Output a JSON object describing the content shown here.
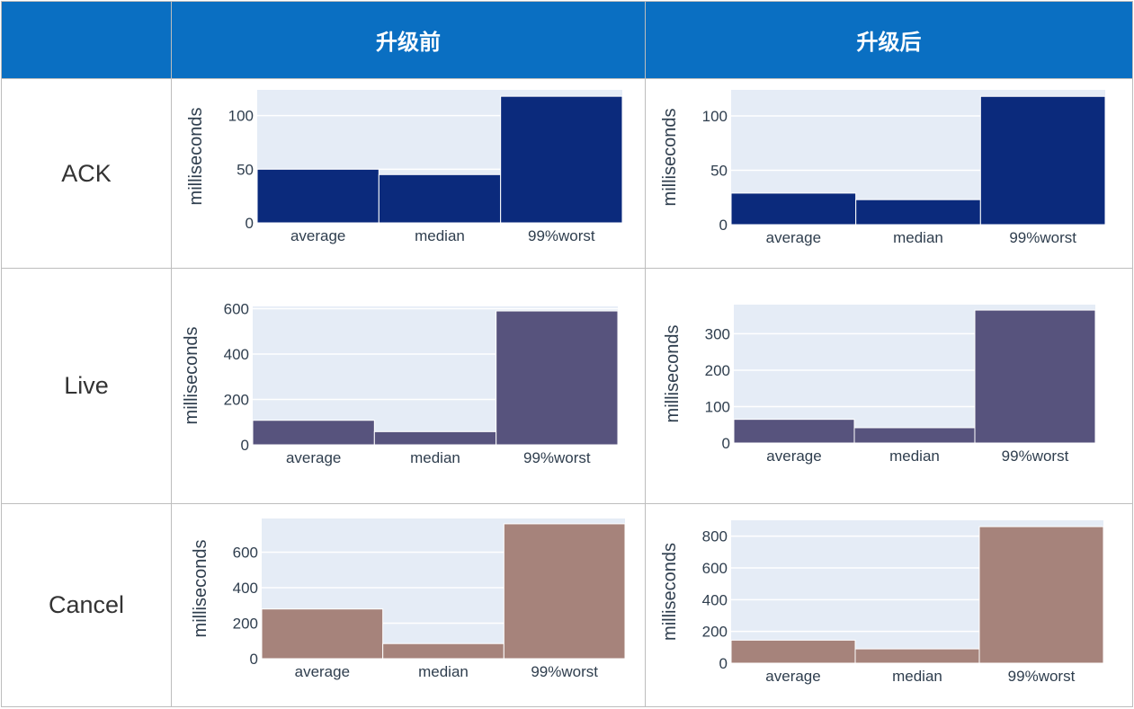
{
  "table": {
    "corner": "",
    "columns": [
      "升级前",
      "升级后"
    ],
    "rows": [
      "ACK",
      "Live",
      "Cancel"
    ]
  },
  "colors": {
    "header_bg": "#0a6fc2",
    "plot_bg": "#e5ecf6",
    "ACK": "#0b2a7c",
    "Live": "#57537d",
    "Cancel": "#a6837b"
  },
  "chart_data": [
    {
      "type": "bar",
      "row": "ACK",
      "column": "升级前",
      "categories": [
        "average",
        "median",
        "99%worst"
      ],
      "values": [
        50,
        45,
        118
      ],
      "ylabel": "milliseconds",
      "ylim": [
        0,
        124
      ],
      "yticks": [
        0,
        50,
        100
      ],
      "grid": true
    },
    {
      "type": "bar",
      "row": "ACK",
      "column": "升级后",
      "categories": [
        "average",
        "median",
        "99%worst"
      ],
      "values": [
        29,
        23,
        118
      ],
      "ylabel": "milliseconds",
      "ylim": [
        0,
        124
      ],
      "yticks": [
        0,
        50,
        100
      ],
      "grid": true
    },
    {
      "type": "bar",
      "row": "Live",
      "column": "升级前",
      "categories": [
        "average",
        "median",
        "99%worst"
      ],
      "values": [
        108,
        58,
        590
      ],
      "ylabel": "milliseconds",
      "ylim": [
        0,
        610
      ],
      "yticks": [
        0,
        200,
        400,
        600
      ],
      "grid": true
    },
    {
      "type": "bar",
      "row": "Live",
      "column": "升级后",
      "categories": [
        "average",
        "median",
        "99%worst"
      ],
      "values": [
        65,
        42,
        365
      ],
      "ylabel": "milliseconds",
      "ylim": [
        0,
        380
      ],
      "yticks": [
        0,
        100,
        200,
        300
      ],
      "grid": true
    },
    {
      "type": "bar",
      "row": "Cancel",
      "column": "升级前",
      "categories": [
        "average",
        "median",
        "99%worst"
      ],
      "values": [
        280,
        85,
        760
      ],
      "ylabel": "milliseconds",
      "ylim": [
        0,
        790
      ],
      "yticks": [
        0,
        200,
        400,
        600
      ],
      "grid": true
    },
    {
      "type": "bar",
      "row": "Cancel",
      "column": "升级后",
      "categories": [
        "average",
        "median",
        "99%worst"
      ],
      "values": [
        145,
        90,
        860
      ],
      "ylabel": "milliseconds",
      "ylim": [
        0,
        900
      ],
      "yticks": [
        0,
        200,
        400,
        600,
        800
      ],
      "grid": true
    }
  ]
}
